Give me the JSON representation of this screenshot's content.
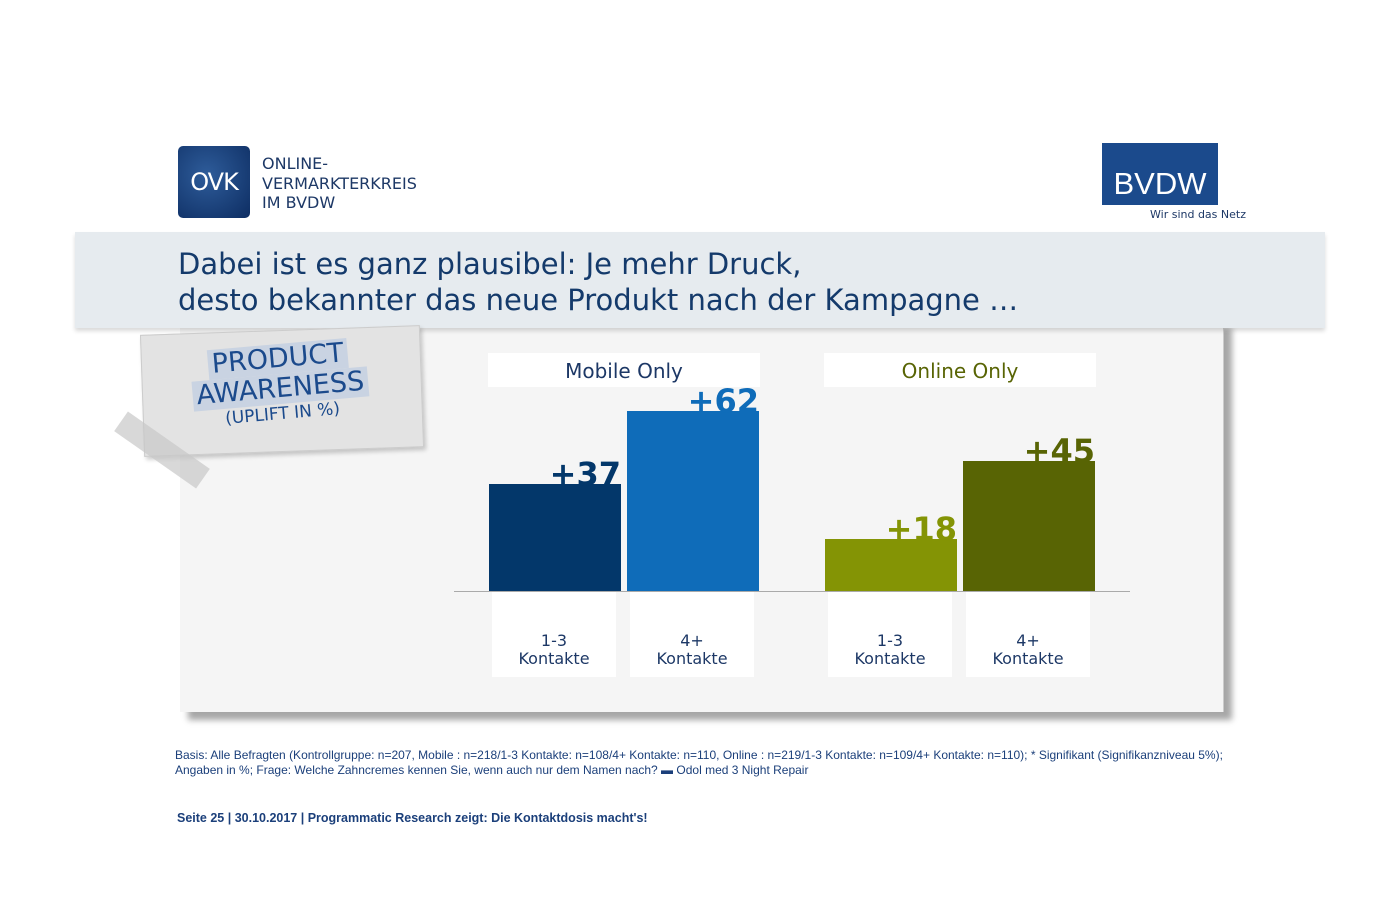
{
  "logos": {
    "ovk_mark": "OVK",
    "ovk_lines": [
      "ONLINE-",
      "VERMARKTERKREIS",
      "IM BVDW"
    ],
    "bvdw_mark": "BVDW",
    "bvdw_tagline": "Wir sind das Netz"
  },
  "headline": {
    "line1": "Dabei ist es ganz plausibel: Je mehr Druck,",
    "line2": "desto bekannter das neue Produkt nach der Kampagne  …"
  },
  "note": {
    "line1": "PRODUCT",
    "line2": "AWARENESS",
    "line3": "(UPLIFT IN %)"
  },
  "chart_data": {
    "type": "bar",
    "categories": [
      "1-3 Kontakte",
      "4+ Kontakte"
    ],
    "groups": [
      {
        "title": "Mobile Only",
        "title_color": "#1d3866",
        "categories": [
          {
            "l1": "1-3",
            "l2": "Kontakte"
          },
          {
            "l1": "4+",
            "l2": "Kontakte"
          }
        ],
        "values": [
          37,
          62
        ],
        "labels": [
          "+37",
          "+62"
        ],
        "colors": [
          "#03376a",
          "#0f6cb9"
        ],
        "label_colors": [
          "#03376a",
          "#0f6cb9"
        ]
      },
      {
        "title": "Online Only",
        "title_color": "#586404",
        "categories": [
          {
            "l1": "1-3",
            "l2": "Kontakte"
          },
          {
            "l1": "4+",
            "l2": "Kontakte"
          }
        ],
        "values": [
          18,
          45
        ],
        "labels": [
          "+18",
          "+45"
        ],
        "colors": [
          "#849405",
          "#586404"
        ],
        "label_colors": [
          "#849405",
          "#586404"
        ]
      }
    ],
    "ylim": [
      0,
      70
    ],
    "grid": false
  },
  "basis": "Basis: Alle Befragten (Kontrollgruppe: n=207, Mobile : n=218/1-3 Kontakte: n=108/4+ Kontakte: n=110, Online : n=219/1-3 Kontakte: n=109/4+ Kontakte: n=110); * Signifikant (Signifikanzniveau 5%); Angaben in %; Frage: Welche Zahncremes kennen Sie, wenn auch nur dem Namen nach? ▬ Odol med 3 Night Repair",
  "footer": "Seite 25 | 30.10.2017 | Programmatic Research zeigt: Die Kontaktdosis macht's!"
}
